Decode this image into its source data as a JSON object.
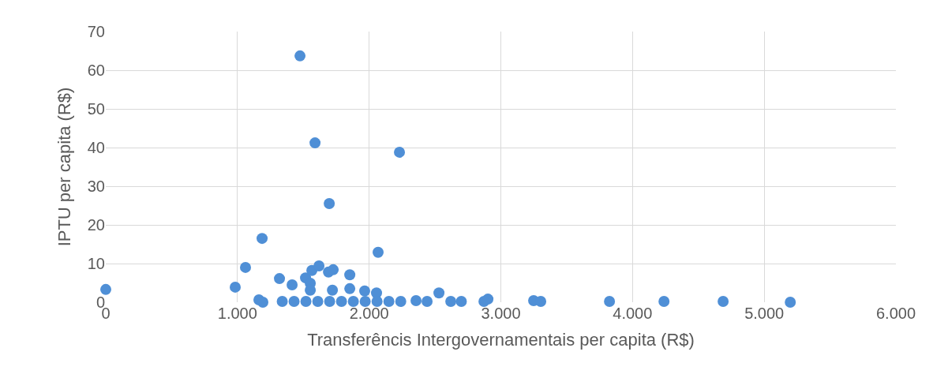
{
  "chart_data": {
    "type": "scatter",
    "xlabel": "Transferêncis Intergovernamentais per capita (R$)",
    "ylabel": "IPTU per capita (R$)",
    "x": [
      0,
      983,
      1061,
      1187,
      1163,
      1193,
      1319,
      1415,
      1475,
      1517,
      1553,
      1565,
      1619,
      1589,
      1691,
      1727,
      1697,
      1853,
      2068,
      2230,
      1853,
      1721,
      1553,
      2356,
      2530,
      2056,
      1966,
      2902,
      2872,
      3249,
      3303,
      3825,
      4239,
      4688,
      5198,
      1340,
      1430,
      1520,
      1610,
      1700,
      1790,
      1880,
      1970,
      2060,
      2150,
      2240,
      2440,
      2620,
      2700
    ],
    "values": [
      3.3,
      3.9,
      9.0,
      16.5,
      0.6,
      0,
      6.1,
      4.5,
      63.7,
      6.3,
      4.9,
      8.2,
      9.4,
      41.2,
      7.8,
      8.4,
      25.5,
      7.1,
      12.9,
      38.8,
      3.5,
      3.1,
      3.1,
      0.4,
      2.4,
      2.4,
      2.9,
      0.8,
      0.2,
      0.4,
      0.2,
      0.2,
      0.2,
      0.2,
      0,
      0.2,
      0.2,
      0.2,
      0.2,
      0.2,
      0.2,
      0.2,
      0.2,
      0.2,
      0.2,
      0.2,
      0.2,
      0.2,
      0.2
    ],
    "color": "#4f8fd6",
    "marker": "circle",
    "grid": true,
    "xlim": [
      0,
      6000
    ],
    "xticks": [
      {
        "value": 0,
        "label": "0"
      },
      {
        "value": 1000,
        "label": "1.000"
      },
      {
        "value": 2000,
        "label": "2.000"
      },
      {
        "value": 3000,
        "label": "3.000"
      },
      {
        "value": 4000,
        "label": "4.000"
      },
      {
        "value": 5000,
        "label": "5.000"
      },
      {
        "value": 6000,
        "label": "6.000"
      }
    ],
    "ylim": [
      0,
      70
    ],
    "yticks": [
      0,
      10,
      20,
      30,
      40,
      50,
      60,
      70
    ]
  }
}
